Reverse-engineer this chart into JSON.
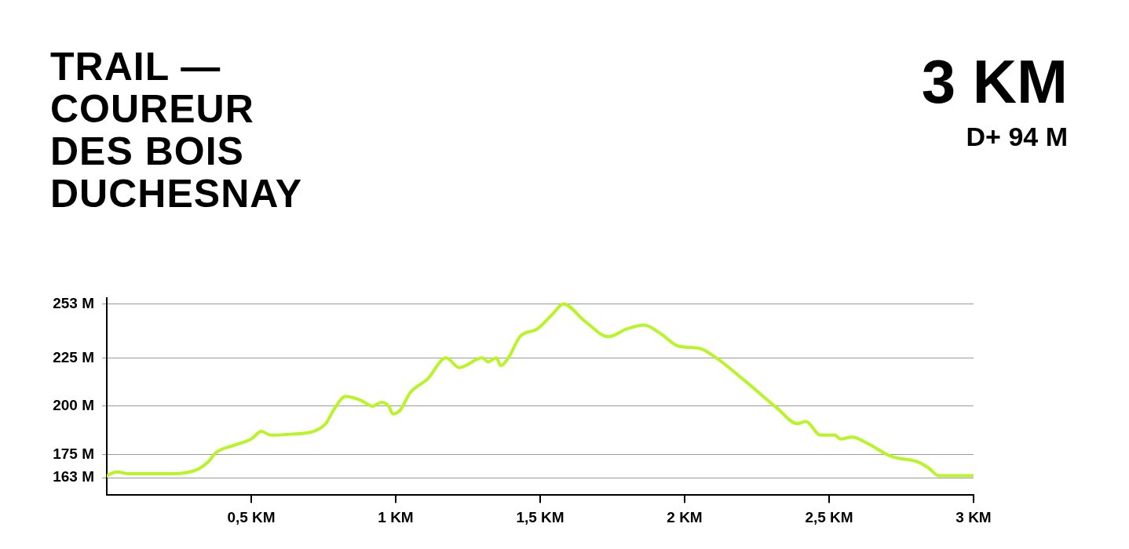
{
  "chart_data": {
    "type": "line",
    "title": "TRAIL —\nCOUREUR\nDES BOIS\nDUCHESNAY",
    "annotations": [
      "3 KM",
      "D+ 94 M"
    ],
    "series": [
      {
        "color": "#b9f526",
        "x": [
          0,
          0.033,
          0.079,
          0.228,
          0.31,
          0.35,
          0.378,
          0.446,
          0.5,
          0.535,
          0.568,
          0.636,
          0.717,
          0.758,
          0.785,
          0.826,
          0.88,
          0.92,
          0.95,
          0.976,
          0.99,
          1.016,
          1.05,
          1.11,
          1.174,
          1.22,
          1.3,
          1.32,
          1.348,
          1.364,
          1.39,
          1.43,
          1.49,
          1.545,
          1.58,
          1.655,
          1.736,
          1.8,
          1.86,
          1.913,
          1.98,
          2.05,
          2.1,
          2.21,
          2.32,
          2.39,
          2.42,
          2.47,
          2.52,
          2.54,
          2.58,
          2.63,
          2.715,
          2.81,
          2.845,
          2.88,
          3
        ],
        "values": [
          164,
          166,
          165,
          165,
          167,
          171,
          176,
          180,
          183,
          187,
          185,
          185.5,
          187,
          191,
          198,
          205,
          203,
          200,
          202,
          200,
          196,
          198,
          207,
          214,
          225,
          220,
          225,
          223,
          225,
          221,
          225,
          236,
          240,
          248,
          253,
          244,
          236,
          240,
          242,
          238,
          231,
          230,
          226,
          213,
          199,
          191,
          192,
          185,
          185,
          183,
          184,
          181,
          174,
          171,
          168,
          164,
          164
        ]
      }
    ],
    "xlim": [
      0,
      3
    ],
    "xticks": [
      {
        "value": 0.5,
        "label": "0,5 KM"
      },
      {
        "value": 1,
        "label": "1 KM"
      },
      {
        "value": 1.5,
        "label": "1,5 KM"
      },
      {
        "value": 2,
        "label": "2 KM"
      },
      {
        "value": 2.5,
        "label": "2,5 KM"
      },
      {
        "value": 3,
        "label": "3 KM"
      }
    ],
    "ylim": [
      154,
      256
    ],
    "yticks": [
      {
        "value": 163,
        "label": "163 M"
      },
      {
        "value": 175,
        "label": "175 M"
      },
      {
        "value": 200,
        "label": "200 M"
      },
      {
        "value": 225,
        "label": "225 M"
      },
      {
        "value": 253,
        "label": "253 M"
      }
    ],
    "grid": "y",
    "legend": false,
    "marker": "none",
    "line_style": "solid"
  }
}
